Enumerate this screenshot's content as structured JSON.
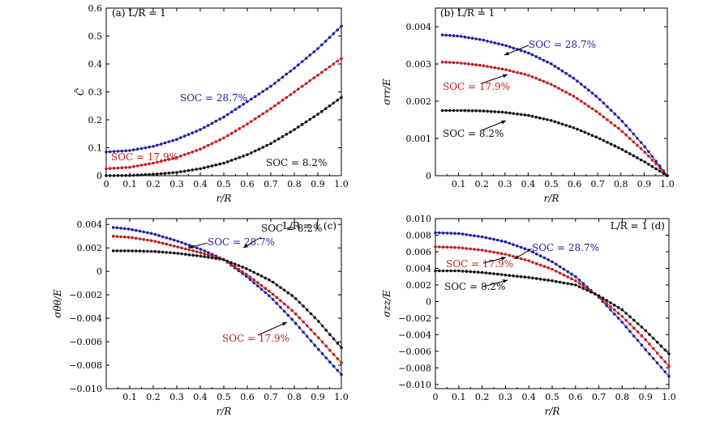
{
  "figure": {
    "colors": {
      "soc_28_7": "#1f1fa8",
      "soc_17_9": "#c41e1e",
      "soc_8_2": "#111111"
    }
  },
  "chart_data": [
    {
      "panel": "(a)",
      "type": "scatter",
      "panel_label": "(a)  L/R = 1",
      "xlabel": "r/R",
      "ylabel": "C̄",
      "xlim": [
        0,
        1.0
      ],
      "ylim": [
        0,
        0.6
      ],
      "xticks": [
        "0",
        "0.1",
        "0.2",
        "0.3",
        "0.4",
        "0.5",
        "0.6",
        "0.7",
        "0.8",
        "0.9",
        "1.0"
      ],
      "yticks": [
        "0",
        "0.1",
        "0.2",
        "0.3",
        "0.4",
        "0.5",
        "0.6"
      ],
      "x": [
        0,
        0.1,
        0.2,
        0.3,
        0.4,
        0.5,
        0.6,
        0.7,
        0.8,
        0.9,
        1.0
      ],
      "series": [
        {
          "name": "SOC = 28.7%",
          "values": [
            0.085,
            0.09,
            0.105,
            0.13,
            0.165,
            0.21,
            0.265,
            0.32,
            0.385,
            0.455,
            0.535
          ]
        },
        {
          "name": "SOC = 17.9%",
          "values": [
            0.025,
            0.03,
            0.045,
            0.065,
            0.095,
            0.135,
            0.185,
            0.24,
            0.3,
            0.36,
            0.42
          ]
        },
        {
          "name": "SOC = 8.2%",
          "values": [
            0.0,
            0.001,
            0.005,
            0.012,
            0.025,
            0.045,
            0.075,
            0.115,
            0.165,
            0.22,
            0.28
          ]
        }
      ],
      "annotations": [
        {
          "text": "SOC = 28.7%",
          "series": 0
        },
        {
          "text": "SOC = 17.9%",
          "series": 1
        },
        {
          "text": "SOC = 8.2%",
          "series": 2
        }
      ]
    },
    {
      "panel": "(b)",
      "type": "scatter",
      "panel_label": "(b)  L/R = 1",
      "xlabel": "r/R",
      "ylabel": "σrr/E",
      "xlim": [
        0,
        1.0
      ],
      "ylim": [
        0,
        0.0045
      ],
      "xticks": [
        "0.1",
        "0.2",
        "0.3",
        "0.4",
        "0.5",
        "0.6",
        "0.7",
        "0.8",
        "0.9",
        "1.0"
      ],
      "yticks": [
        "0",
        "0.001",
        "0.002",
        "0.003",
        "0.004"
      ],
      "x": [
        0.03,
        0.1,
        0.2,
        0.3,
        0.4,
        0.5,
        0.6,
        0.7,
        0.8,
        0.9,
        1.0
      ],
      "series": [
        {
          "name": "SOC = 28.7%",
          "values": [
            0.00378,
            0.00375,
            0.00365,
            0.0035,
            0.0033,
            0.003,
            0.0026,
            0.0021,
            0.0015,
            0.0008,
            0.0
          ]
        },
        {
          "name": "SOC = 17.9%",
          "values": [
            0.00305,
            0.00303,
            0.00296,
            0.00285,
            0.0027,
            0.00245,
            0.00212,
            0.0017,
            0.00122,
            0.00065,
            0.0
          ]
        },
        {
          "name": "SOC = 8.2%",
          "values": [
            0.00175,
            0.00175,
            0.00174,
            0.0017,
            0.00162,
            0.00148,
            0.00128,
            0.00102,
            0.00072,
            0.00038,
            0.0
          ]
        }
      ],
      "annotations": [
        {
          "text": "SOC = 28.7%",
          "series": 0
        },
        {
          "text": "SOC = 17.9%",
          "series": 1
        },
        {
          "text": "SOC = 8.2%",
          "series": 2
        }
      ]
    },
    {
      "panel": "(c)",
      "type": "scatter",
      "panel_label": "L/R = 1  (c)",
      "xlabel": "r/R",
      "ylabel": "σθθ/E",
      "xlim": [
        0,
        1.0
      ],
      "ylim": [
        -0.01,
        0.0045
      ],
      "xticks": [
        "0.1",
        "0.2",
        "0.3",
        "0.4",
        "0.5",
        "0.6",
        "0.7",
        "0.8",
        "0.9",
        "1.0"
      ],
      "yticks": [
        "0.004",
        "0.002",
        "0",
        "−0.002",
        "−0.004",
        "−0.006",
        "−0.008",
        "−0.010"
      ],
      "x": [
        0.03,
        0.1,
        0.2,
        0.3,
        0.4,
        0.5,
        0.6,
        0.7,
        0.8,
        0.9,
        1.0
      ],
      "series": [
        {
          "name": "SOC = 28.7%",
          "values": [
            0.00375,
            0.0036,
            0.0032,
            0.0026,
            0.0019,
            0.001,
            -0.0005,
            -0.0022,
            -0.0043,
            -0.0066,
            -0.0088
          ]
        },
        {
          "name": "SOC = 17.9%",
          "values": [
            0.003,
            0.0029,
            0.0026,
            0.0021,
            0.0016,
            0.001,
            -0.0003,
            -0.0018,
            -0.0035,
            -0.0056,
            -0.0078
          ]
        },
        {
          "name": "SOC = 8.2%",
          "values": [
            0.00175,
            0.00175,
            0.0017,
            0.00155,
            0.0013,
            0.001,
            0.0002,
            -0.0008,
            -0.0022,
            -0.0042,
            -0.0065
          ]
        }
      ],
      "annotations": [
        {
          "text": "SOC = 28.7%",
          "series": 0
        },
        {
          "text": "SOC = 8.2%",
          "series": 2
        },
        {
          "text": "SOC = 17.9%",
          "series": 1
        }
      ]
    },
    {
      "panel": "(d)",
      "type": "scatter",
      "panel_label": "L/R = 1  (d)",
      "xlabel": "r/R",
      "ylabel": "σzz/E",
      "xlim": [
        0,
        1.0
      ],
      "ylim": [
        -0.0105,
        0.01
      ],
      "xticks": [
        "0",
        "0.1",
        "0.2",
        "0.3",
        "0.4",
        "0.5",
        "0.6",
        "0.7",
        "0.8",
        "0.9",
        "1.0"
      ],
      "yticks": [
        "0.010",
        "0.008",
        "0.006",
        "0.004",
        "0.002",
        "0",
        "−0.002",
        "−0.004",
        "−0.006",
        "−0.008",
        "−0.010"
      ],
      "x": [
        0,
        0.1,
        0.2,
        0.3,
        0.4,
        0.5,
        0.6,
        0.7,
        0.8,
        0.9,
        1.0
      ],
      "series": [
        {
          "name": "SOC = 28.7%",
          "values": [
            0.0083,
            0.0082,
            0.0078,
            0.0072,
            0.0062,
            0.0048,
            0.003,
            0.0005,
            -0.0025,
            -0.0058,
            -0.009
          ]
        },
        {
          "name": "SOC = 17.9%",
          "values": [
            0.0066,
            0.0065,
            0.0062,
            0.0057,
            0.0049,
            0.0039,
            0.0025,
            0.0006,
            -0.0018,
            -0.0046,
            -0.0078
          ]
        },
        {
          "name": "SOC = 8.2%",
          "values": [
            0.0037,
            0.0037,
            0.0035,
            0.0032,
            0.0029,
            0.0025,
            0.002,
            0.0007,
            -0.001,
            -0.0035,
            -0.0063
          ]
        }
      ],
      "annotations": [
        {
          "text": "SOC = 28.7%",
          "series": 0
        },
        {
          "text": "SOC = 17.9%",
          "series": 1
        },
        {
          "text": "SOC = 8.2%",
          "series": 2
        }
      ]
    }
  ]
}
